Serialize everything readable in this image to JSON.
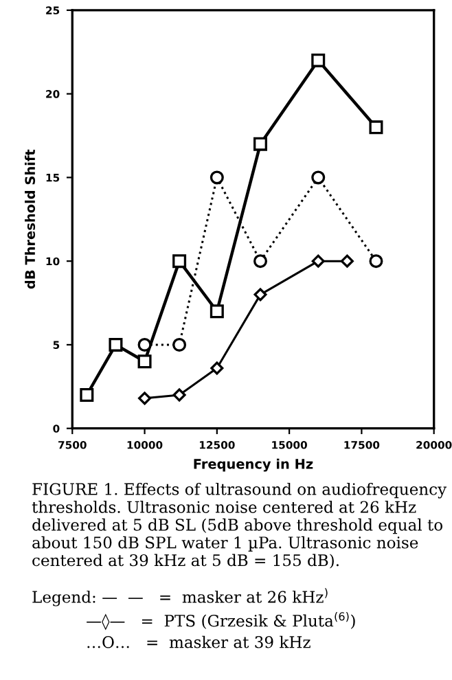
{
  "chart_data": {
    "type": "line",
    "xlabel": "Frequency in Hz",
    "ylabel": "dB Threshold Shift",
    "xlim": [
      7500,
      20000
    ],
    "xticks": [
      7500,
      10000,
      12500,
      15000,
      17500,
      20000
    ],
    "ylim": [
      0,
      25
    ],
    "yticks": [
      0,
      5,
      10,
      15,
      20,
      25
    ],
    "grid": false,
    "legend": false,
    "series": [
      {
        "color": "#000000",
        "marker": "square",
        "line_style": "solid",
        "x": [
          8000,
          9000,
          10000,
          11200,
          12500,
          14000,
          16000,
          18000
        ],
        "values": [
          2,
          5,
          4,
          10,
          7,
          17,
          22,
          18
        ]
      },
      {
        "color": "#000000",
        "marker": "circle",
        "line_style": "dotted",
        "x": [
          10000,
          11200,
          12500,
          14000,
          16000,
          18000
        ],
        "values": [
          5,
          5,
          15,
          10,
          15,
          10
        ]
      },
      {
        "color": "#000000",
        "marker": "diamond",
        "line_style": "solid",
        "x": [
          10000,
          11200,
          12500,
          14000,
          16000,
          17000
        ],
        "values": [
          1.8,
          2,
          3.6,
          8,
          10,
          10
        ]
      }
    ],
    "annotations": [
      "FIGURE 1. Effects of ultrasound on audiofrequency thresholds. Ultrasonic noise centered at 26 kHz delivered at 5 dB SL (5dB above threshold equal to about 150 dB SPL water 1 µPa. Ultrasonic noise centered at 39 kHz at 5 dB = 155 dB).",
      "Legend: —  —   =  masker at 26 kHz$^{)}$",
      "—◊—   =  PTS (Grzesik & Pluta$^{(6)}$)",
      "…O…   =  masker at 39 kHz"
    ]
  }
}
